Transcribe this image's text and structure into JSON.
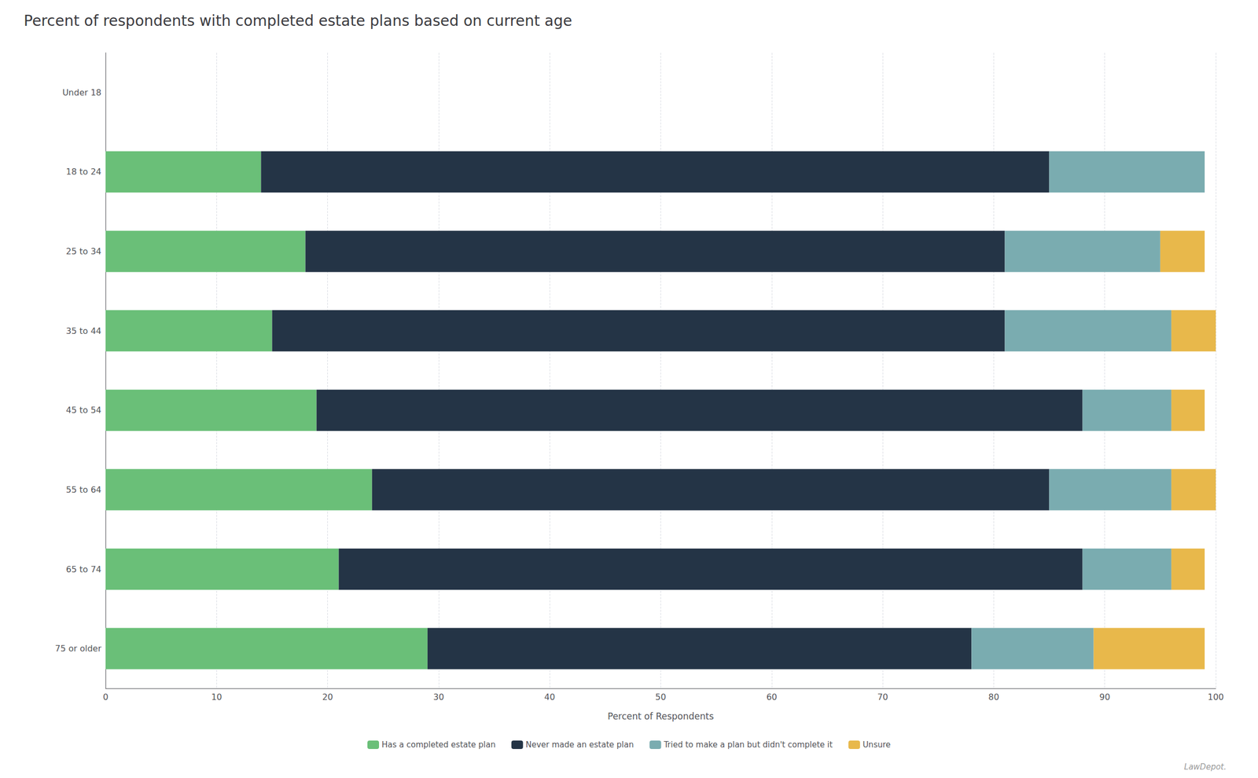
{
  "chart_data": {
    "type": "bar",
    "orientation": "horizontal",
    "stacked": true,
    "title": "Percent of respondents with completed estate plans based on current age",
    "xlabel": "Percent of Respondents",
    "categories": [
      "Under 18",
      "18 to 24",
      "25 to 34",
      "35 to 44",
      "45 to 54",
      "55 to 64",
      "65 to 74",
      "75 or older"
    ],
    "series": [
      {
        "name": "Has a completed estate plan",
        "color": "#6abf78",
        "values": [
          0,
          14,
          18,
          15,
          19,
          24,
          21,
          29
        ]
      },
      {
        "name": "Never made an estate plan",
        "color": "#243446",
        "values": [
          0,
          71,
          63,
          66,
          69,
          61,
          67,
          49
        ]
      },
      {
        "name": "Tried to make a plan but didn't complete it",
        "color": "#7aacb0",
        "values": [
          0,
          14,
          14,
          15,
          8,
          11,
          8,
          11
        ]
      },
      {
        "name": "Unsure",
        "color": "#e8b84b",
        "values": [
          0,
          0,
          4,
          4,
          3,
          4,
          3,
          10
        ]
      }
    ],
    "xlim": [
      0,
      100
    ],
    "xticks": [
      0,
      10,
      20,
      30,
      40,
      50,
      60,
      70,
      80,
      90,
      100
    ],
    "grid": true,
    "legend": "bottom",
    "annotations": [
      "LawDepot."
    ]
  }
}
